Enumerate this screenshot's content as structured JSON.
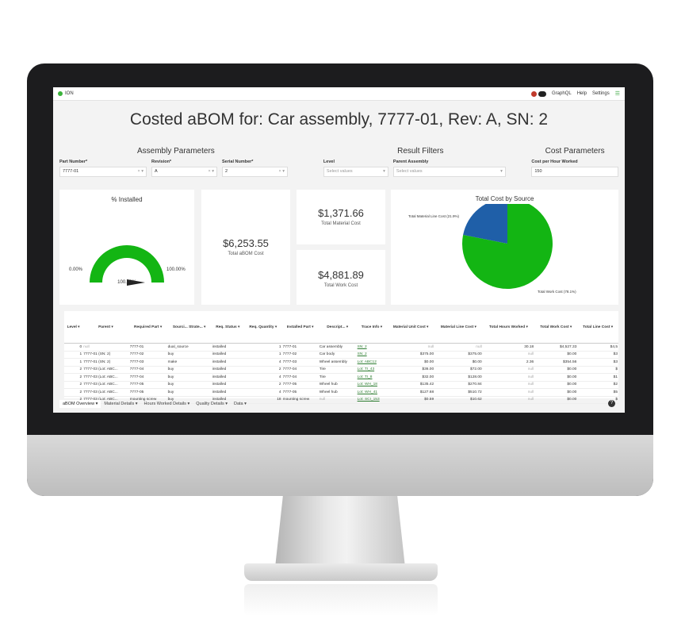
{
  "topbar": {
    "app": "ION",
    "nav": [
      "GraphQL",
      "Help",
      "Settings"
    ]
  },
  "page_title": "Costed aBOM for: Car assembly, 7777-01, Rev: A, SN: 2",
  "assembly_params": {
    "title": "Assembly Parameters",
    "part_number": {
      "label": "Part Number*",
      "value": "7777-01"
    },
    "revision": {
      "label": "Revision*",
      "value": "A"
    },
    "serial_number": {
      "label": "Serial Number*",
      "value": "2"
    }
  },
  "result_filters": {
    "title": "Result Filters",
    "level": {
      "label": "Level",
      "placeholder": "Select values"
    },
    "parent_assembly": {
      "label": "Parent Assembly",
      "placeholder": "Select values"
    }
  },
  "cost_params": {
    "title": "Cost Parameters",
    "cost_per_hour": {
      "label": "Cost per Hour Worked",
      "value": "150"
    }
  },
  "installed_card": {
    "title": "% Installed",
    "min": "0.00%",
    "max": "100.00%",
    "value": "100.00%",
    "fraction": 1.0
  },
  "total_abom": {
    "value": "$6,253.55",
    "label": "Total aBOM Cost"
  },
  "material_cost": {
    "value": "$1,371.66",
    "label": "Total Material Cost"
  },
  "work_cost": {
    "value": "$4,881.89",
    "label": "Total Work Cost"
  },
  "pie": {
    "title": "Total Cost by Source",
    "slices": [
      {
        "label": "Total Material Line Cost (21.9%)",
        "value": 21.9,
        "color": "#1f5fa8"
      },
      {
        "label": "Total Work Cost (78.1%)",
        "value": 78.1,
        "color": "#13b513"
      }
    ]
  },
  "table": {
    "headers": [
      "Level",
      "Parent",
      "Required Part",
      "Sourci... Strate...",
      "Req. Status",
      "Req. Quantity",
      "Installed Part",
      "Descript...",
      "Trace Info",
      "Material Unit Cost",
      "Material Line Cost",
      "Total Hours Worked",
      "Total Work Cost",
      "Total Line Cost"
    ],
    "rows": [
      [
        "0",
        "null",
        "7777-01",
        "dual_source",
        "installed",
        "1",
        "7777-01",
        "Car assembly",
        "SN: 2",
        "null",
        "null",
        "30.18",
        "$4,527.33",
        "$4,5"
      ],
      [
        "1",
        "7777-01 (SN: 2)",
        "7777-02",
        "buy",
        "installed",
        "1",
        "7777-02",
        "Car body",
        "SN: 2",
        "$375.00",
        "$375.00",
        "null",
        "$0.00",
        "$3"
      ],
      [
        "1",
        "7777-01 (SN: 2)",
        "7777-03",
        "make",
        "installed",
        "4",
        "7777-03",
        "Wheel assembly",
        "Lot: ABC12",
        "$0.00",
        "$0.00",
        "2.36",
        "$354.56",
        "$3"
      ],
      [
        "2",
        "7777-03 (Lot: ABC...",
        "7777-04",
        "buy",
        "installed",
        "2",
        "7777-04",
        "Tire",
        "Lot: TI_43",
        "$36.00",
        "$72.00",
        "null",
        "$0.00",
        "$"
      ],
      [
        "2",
        "7777-03 (Lot: ABC...",
        "7777-04",
        "buy",
        "installed",
        "4",
        "7777-04",
        "Tire",
        "Lot: TI_8",
        "$32.00",
        "$128.00",
        "null",
        "$0.00",
        "$1"
      ],
      [
        "2",
        "7777-03 (Lot: ABC...",
        "7777-05",
        "buy",
        "installed",
        "2",
        "7777-05",
        "Wheel hub",
        "Lot: WH_18",
        "$135.42",
        "$270.84",
        "null",
        "$0.00",
        "$2"
      ],
      [
        "2",
        "7777-03 (Lot: ABC...",
        "7777-05",
        "buy",
        "installed",
        "4",
        "7777-05",
        "Wheel hub",
        "Lot: WH_41",
        "$127.68",
        "$510.72",
        "null",
        "$0.00",
        "$5"
      ],
      [
        "2",
        "7777-03 (Lot: ABC...",
        "mounting screw",
        "buy",
        "installed",
        "18",
        "mounting screw",
        "null",
        "Lot: SCI_153",
        "$0.59",
        "$10.62",
        "null",
        "$0.00",
        "$"
      ]
    ]
  },
  "tabs": [
    "aBOM Overview",
    "Material Details",
    "Hours Worked Details",
    "Quality Details",
    "Data"
  ],
  "help_button": "?"
}
